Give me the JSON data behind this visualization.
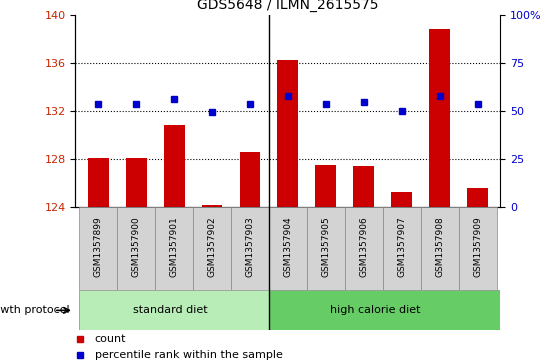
{
  "title": "GDS5648 / ILMN_2615575",
  "samples": [
    "GSM1357899",
    "GSM1357900",
    "GSM1357901",
    "GSM1357902",
    "GSM1357903",
    "GSM1357904",
    "GSM1357905",
    "GSM1357906",
    "GSM1357907",
    "GSM1357908",
    "GSM1357909"
  ],
  "counts": [
    128.1,
    128.1,
    130.8,
    124.2,
    128.6,
    136.2,
    127.5,
    127.4,
    125.2,
    138.8,
    125.6
  ],
  "percentile_y": [
    132.6,
    132.6,
    133.0,
    131.9,
    132.6,
    133.2,
    132.6,
    132.7,
    132.0,
    133.2,
    132.6
  ],
  "ylim_left": [
    124,
    140
  ],
  "ylim_right": [
    0,
    100
  ],
  "yticks_left": [
    124,
    128,
    132,
    136,
    140
  ],
  "yticks_right": [
    0,
    25,
    50,
    75,
    100
  ],
  "group_boundary": 4.5,
  "bar_color": "#CC0000",
  "dot_color": "#0000CC",
  "green_light": "#B8EDB8",
  "green_dark": "#66CC66",
  "gray_box": "#D3D3D3",
  "protocol_label": "growth protocol"
}
